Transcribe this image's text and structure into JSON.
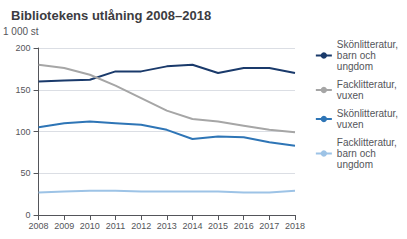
{
  "chart_data": {
    "type": "line",
    "title": "Bibliotekens utlåning 2008–2018",
    "ylabel": "1 000 st",
    "x": [
      2008,
      2009,
      2010,
      2011,
      2012,
      2013,
      2014,
      2015,
      2016,
      2017,
      2018
    ],
    "series": [
      {
        "name": "Skönlitteratur,\nbarn och\nungdom",
        "color": "#1a3a6b",
        "values": [
          160,
          161,
          162,
          172,
          172,
          178,
          180,
          170,
          176,
          176,
          170
        ]
      },
      {
        "name": "Facklitteratur,\nvuxen",
        "color": "#a6a6a6",
        "values": [
          180,
          176,
          168,
          155,
          140,
          125,
          115,
          112,
          107,
          102,
          99
        ]
      },
      {
        "name": "Skönlitteratur,\nvuxen",
        "color": "#2e75b6",
        "values": [
          105,
          110,
          112,
          110,
          108,
          102,
          91,
          94,
          93,
          87,
          83
        ]
      },
      {
        "name": "Facklitteratur,\nbarn och\nungdom",
        "color": "#9dc3e6",
        "values": [
          27,
          28,
          29,
          29,
          28,
          28,
          28,
          28,
          27,
          27,
          29
        ]
      }
    ],
    "xlim": [
      2008,
      2018
    ],
    "xticks": [
      2008,
      2009,
      2010,
      2011,
      2012,
      2013,
      2014,
      2015,
      2016,
      2017,
      2018
    ],
    "ylim": [
      0,
      200
    ],
    "yticks": [
      0,
      50,
      100,
      150,
      200
    ],
    "grid": true,
    "legend": "upper right"
  }
}
